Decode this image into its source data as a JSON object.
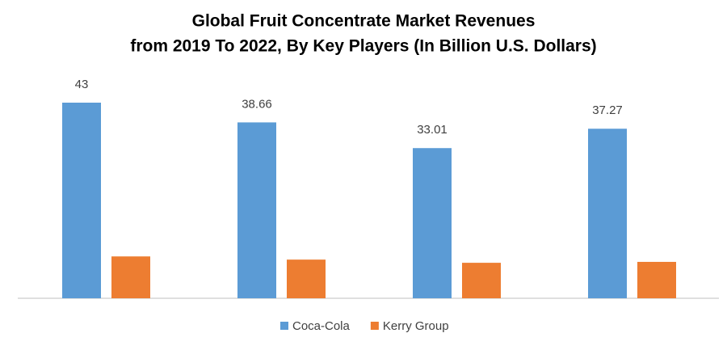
{
  "chart_data": {
    "type": "bar",
    "title": [
      "Global Fruit Concentrate Market Revenues",
      "from 2019 To 2022, By Key Players (In Billion U.S. Dollars)"
    ],
    "categories": [
      null,
      null,
      null,
      null
    ],
    "series": [
      {
        "name": "Coca-Cola",
        "color": "#5b9bd5",
        "values": [
          43,
          38.66,
          33.01,
          37.27
        ],
        "show_labels": true
      },
      {
        "name": "Kerry Group",
        "color": "#ed7d31",
        "values": [
          9.2,
          8.5,
          7.8,
          8.0
        ],
        "show_labels": false
      }
    ],
    "legend": "bottom"
  }
}
